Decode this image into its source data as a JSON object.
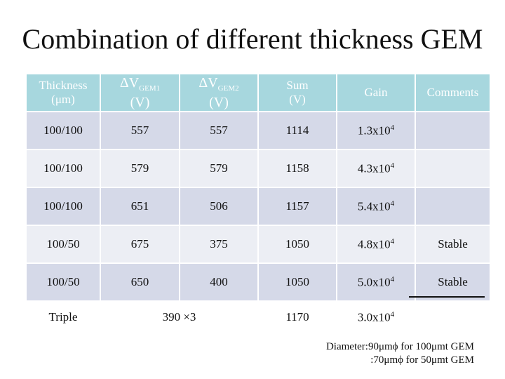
{
  "title": "Combination of different thickness GEM",
  "table": {
    "headers": {
      "thickness": "Thickness",
      "thickness_unit": "(μm)",
      "dv1_prefix": "ΔV",
      "dv1_sub": "GEM1",
      "dv1_unit": "(V)",
      "dv2_prefix": "ΔV",
      "dv2_sub": "GEM2",
      "dv2_unit": "(V)",
      "sum": "Sum",
      "sum_unit": "(V)",
      "gain": "Gain",
      "comments": "Comments"
    },
    "rows": [
      {
        "thickness": "100/100",
        "dv1": "557",
        "dv2": "557",
        "sum": "1114",
        "gain_mantissa": "1.3x10",
        "gain_exp": "4",
        "comment": ""
      },
      {
        "thickness": "100/100",
        "dv1": "579",
        "dv2": "579",
        "sum": "1158",
        "gain_mantissa": "4.3x10",
        "gain_exp": "4",
        "comment": ""
      },
      {
        "thickness": "100/100",
        "dv1": "651",
        "dv2": "506",
        "sum": "1157",
        "gain_mantissa": "5.4x10",
        "gain_exp": "4",
        "comment": ""
      },
      {
        "thickness": "100/50",
        "dv1": "675",
        "dv2": "375",
        "sum": "1050",
        "gain_mantissa": "4.8x10",
        "gain_exp": "4",
        "comment": "Stable"
      },
      {
        "thickness": "100/50",
        "dv1": "650",
        "dv2": "400",
        "sum": "1050",
        "gain_mantissa": "5.0x10",
        "gain_exp": "4",
        "comment": "Stable"
      },
      {
        "thickness": "Triple",
        "dv_combined": "390 ×3",
        "sum": "1170",
        "gain_mantissa": "3.0x10",
        "gain_exp": "4",
        "comment": ""
      }
    ]
  },
  "notes": {
    "line1": "Diameter:90μmϕ for 100μmt GEM",
    "line2": ":70μmϕ for 50μmt GEM"
  }
}
